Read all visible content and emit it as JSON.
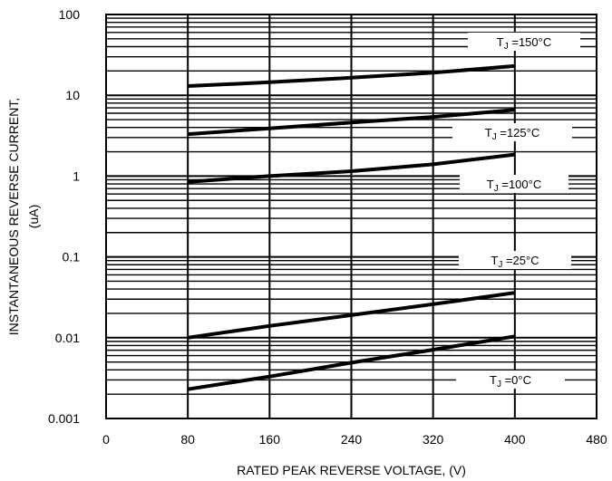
{
  "chart_data": {
    "type": "line",
    "title": "",
    "xlabel": "RATED PEAK REVERSE VOLTAGE, (V)",
    "ylabel_line1": "INSTANTANEOUS REVERSE CURRENT,",
    "ylabel_line2": "(uA)",
    "xlim": [
      0,
      480
    ],
    "ylim": [
      0.001,
      100
    ],
    "y_scale": "log",
    "grid": true,
    "x_ticks": [
      0,
      80,
      160,
      240,
      320,
      400,
      480
    ],
    "x_tick_labels": [
      "0",
      "80",
      "160",
      "240",
      "320",
      "400",
      "480"
    ],
    "y_ticks": [
      0.001,
      0.01,
      0.1,
      1,
      10,
      100
    ],
    "y_tick_labels": [
      "0.001",
      "0.01",
      "0.1",
      "1",
      "10",
      "100"
    ],
    "series": [
      {
        "name": "TJ =150°C",
        "x": [
          80,
          160,
          240,
          320,
          400
        ],
        "y": [
          13,
          14.5,
          16.5,
          19,
          23
        ]
      },
      {
        "name": "TJ =125°C",
        "x": [
          80,
          160,
          240,
          320,
          400
        ],
        "y": [
          3.3,
          3.9,
          4.6,
          5.4,
          6.6
        ]
      },
      {
        "name": "TJ =100°C",
        "x": [
          80,
          160,
          240,
          320,
          400
        ],
        "y": [
          0.85,
          1.0,
          1.15,
          1.4,
          1.85
        ]
      },
      {
        "name": "TJ =25°C",
        "x": [
          80,
          160,
          240,
          320,
          400
        ],
        "y": [
          0.01,
          0.014,
          0.019,
          0.026,
          0.036
        ]
      },
      {
        "name": "TJ =0°C",
        "x": [
          80,
          160,
          240,
          320,
          400
        ],
        "y": [
          0.0023,
          0.0033,
          0.0049,
          0.0071,
          0.0104
        ]
      }
    ],
    "series_labels": [
      {
        "prefix": "T",
        "sub": "J",
        "text": " =150°C"
      },
      {
        "prefix": "T",
        "sub": "J",
        "text": " =125°C"
      },
      {
        "prefix": "T",
        "sub": "J",
        "text": " =100°C"
      },
      {
        "prefix": "T",
        "sub": "J",
        "text": " =25°C"
      },
      {
        "prefix": "T",
        "sub": "J",
        "text": " =0°C"
      }
    ]
  }
}
